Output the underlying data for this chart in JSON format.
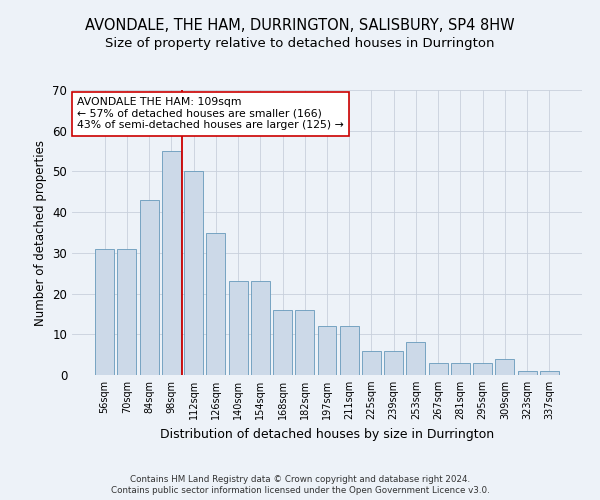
{
  "title": "AVONDALE, THE HAM, DURRINGTON, SALISBURY, SP4 8HW",
  "subtitle": "Size of property relative to detached houses in Durrington",
  "xlabel": "Distribution of detached houses by size in Durrington",
  "ylabel": "Number of detached properties",
  "bar_labels": [
    "56sqm",
    "70sqm",
    "84sqm",
    "98sqm",
    "112sqm",
    "126sqm",
    "140sqm",
    "154sqm",
    "168sqm",
    "182sqm",
    "197sqm",
    "211sqm",
    "225sqm",
    "239sqm",
    "253sqm",
    "267sqm",
    "281sqm",
    "295sqm",
    "309sqm",
    "323sqm",
    "337sqm"
  ],
  "bar_values": [
    31,
    31,
    43,
    55,
    50,
    35,
    23,
    23,
    16,
    16,
    12,
    12,
    6,
    6,
    8,
    3,
    3,
    3,
    4,
    1,
    1
  ],
  "bar_color": "#ccd9e8",
  "bar_edge_color": "#6699bb",
  "vline_x_index": 4,
  "vline_color": "#cc0000",
  "annotation_text": "AVONDALE THE HAM: 109sqm\n← 57% of detached houses are smaller (166)\n43% of semi-detached houses are larger (125) →",
  "annotation_box_color": "#ffffff",
  "annotation_box_edge": "#cc0000",
  "ylim": [
    0,
    70
  ],
  "yticks": [
    0,
    10,
    20,
    30,
    40,
    50,
    60,
    70
  ],
  "grid_color": "#c8d0dc",
  "title_fontsize": 10.5,
  "subtitle_fontsize": 9.5,
  "xlabel_fontsize": 9,
  "ylabel_fontsize": 8.5,
  "footer1": "Contains HM Land Registry data © Crown copyright and database right 2024.",
  "footer2": "Contains public sector information licensed under the Open Government Licence v3.0.",
  "bg_color": "#edf2f8",
  "plot_bg_color": "#edf2f8"
}
